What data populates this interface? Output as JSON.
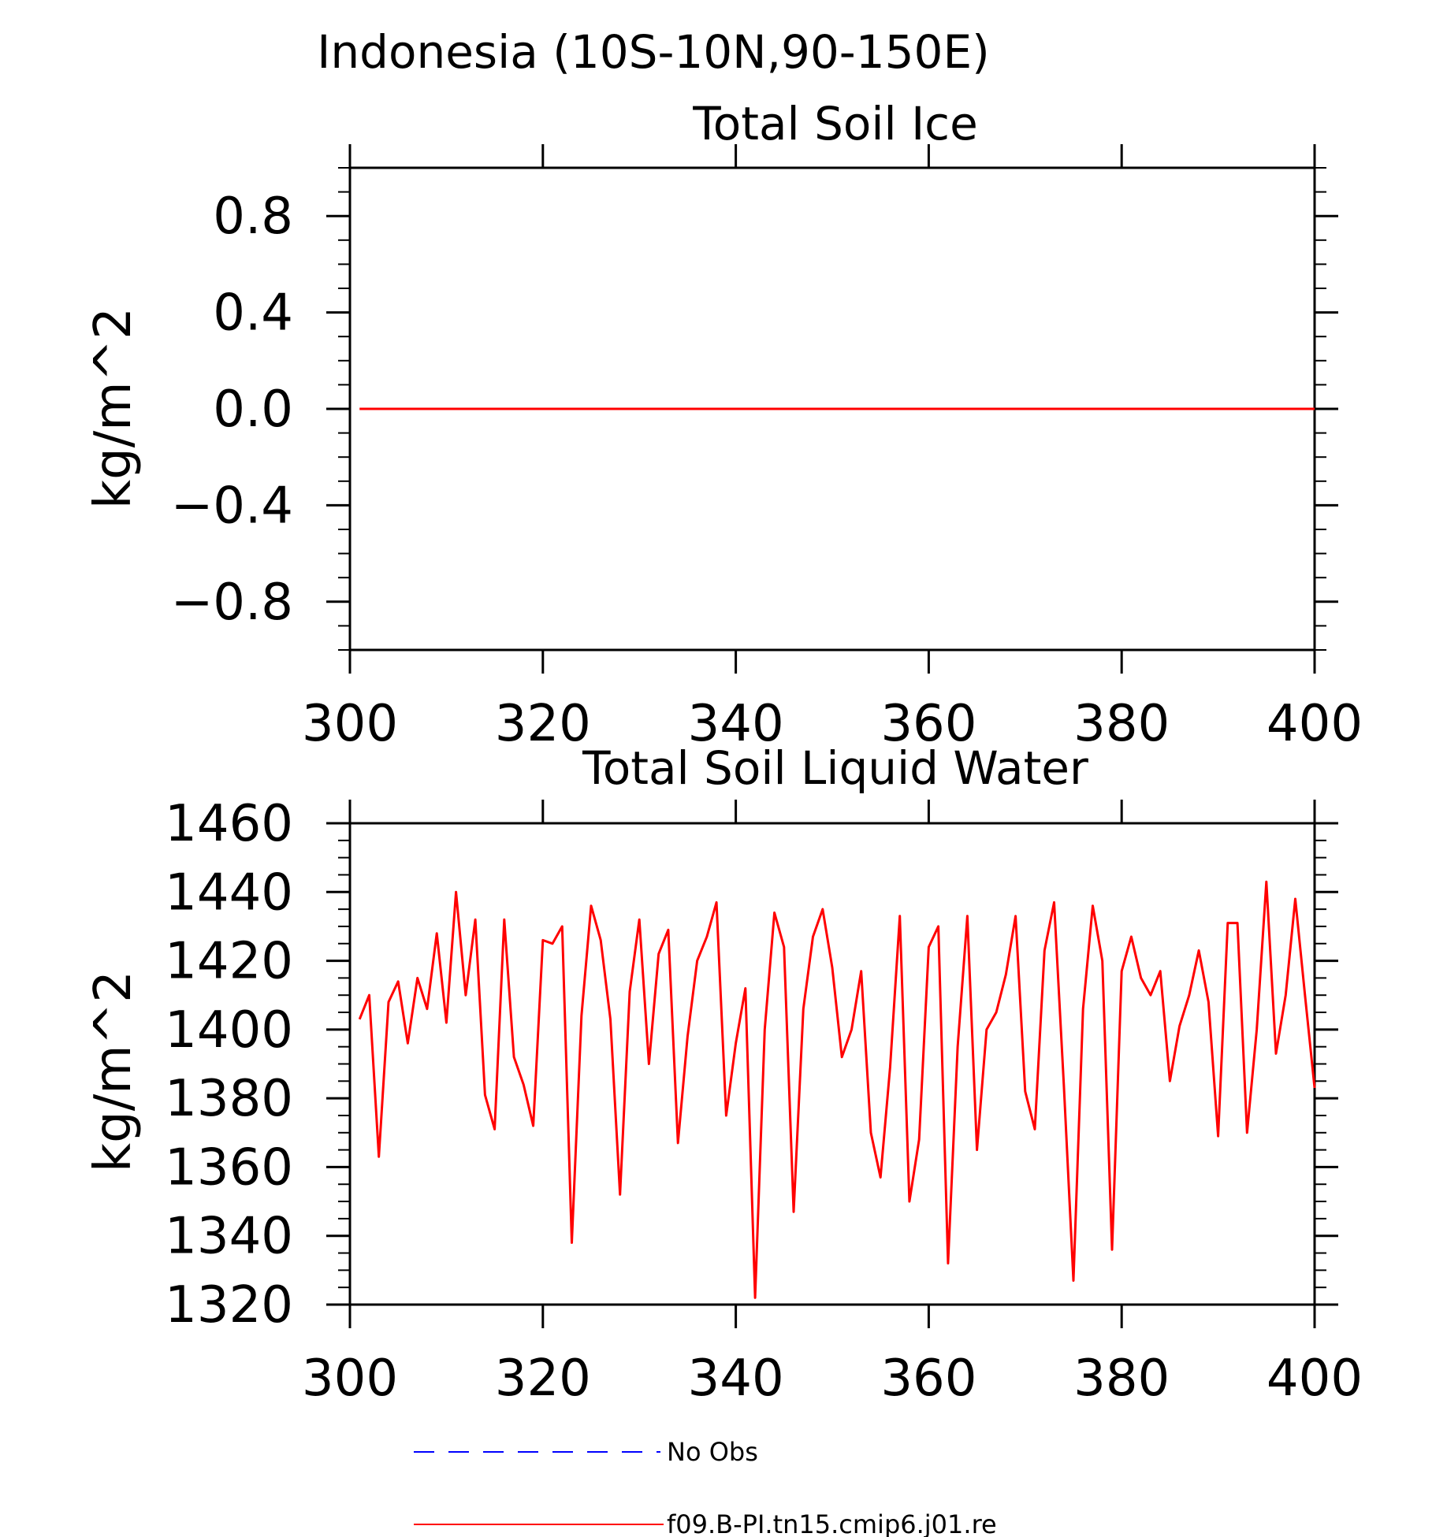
{
  "figure_title": "Indonesia (10S-10N,90-150E)",
  "chart_data": [
    {
      "type": "line",
      "title": "Total Soil Ice",
      "xlabel": "",
      "ylabel": "kg/m^2",
      "xlim": [
        300,
        400
      ],
      "ylim": [
        -1,
        1
      ],
      "x_ticks": [
        "300",
        "320",
        "340",
        "360",
        "380",
        "400"
      ],
      "y_ticks": [
        "0.8",
        "0.4",
        "0.0",
        "−0.4",
        "−0.8"
      ],
      "y_tick_values": [
        0.8,
        0.4,
        0.0,
        -0.4,
        -0.8
      ],
      "series": [
        {
          "name": "f09.B-PI.tn15.cmip6.j01.re",
          "color": "#ff0000",
          "x": [
            301,
            400
          ],
          "y": [
            0,
            0
          ]
        }
      ]
    },
    {
      "type": "line",
      "title": "Total Soil Liquid Water",
      "xlabel": "",
      "ylabel": "kg/m^2",
      "xlim": [
        300,
        400
      ],
      "ylim": [
        1320,
        1460
      ],
      "x_ticks": [
        "300",
        "320",
        "340",
        "360",
        "380",
        "400"
      ],
      "y_ticks": [
        "1460",
        "1440",
        "1420",
        "1400",
        "1380",
        "1360",
        "1340",
        "1320"
      ],
      "y_tick_values": [
        1460,
        1440,
        1420,
        1400,
        1380,
        1360,
        1340,
        1320
      ],
      "series": [
        {
          "name": "f09.B-PI.tn15.cmip6.j01.re",
          "color": "#ff0000",
          "x": [
            301,
            302,
            303,
            304,
            305,
            306,
            307,
            308,
            309,
            310,
            311,
            312,
            313,
            314,
            315,
            316,
            317,
            318,
            319,
            320,
            321,
            322,
            323,
            324,
            325,
            326,
            327,
            328,
            329,
            330,
            331,
            332,
            333,
            334,
            335,
            336,
            337,
            338,
            339,
            340,
            341,
            342,
            343,
            344,
            345,
            346,
            347,
            348,
            349,
            350,
            351,
            352,
            353,
            354,
            355,
            356,
            357,
            358,
            359,
            360,
            361,
            362,
            363,
            364,
            365,
            366,
            367,
            368,
            369,
            370,
            371,
            372,
            373,
            374,
            375,
            376,
            377,
            378,
            379,
            380,
            381,
            382,
            383,
            384,
            385,
            386,
            387,
            388,
            389,
            390,
            391,
            392,
            393,
            394,
            395,
            396,
            397,
            398,
            399,
            400
          ],
          "y": [
            1403,
            1410,
            1363,
            1408,
            1414,
            1396,
            1415,
            1406,
            1428,
            1402,
            1440,
            1410,
            1432,
            1381,
            1371,
            1432,
            1392,
            1384,
            1372,
            1426,
            1425,
            1430,
            1338,
            1404,
            1436,
            1426,
            1403,
            1352,
            1411,
            1432,
            1390,
            1422,
            1429,
            1367,
            1398,
            1420,
            1427,
            1437,
            1375,
            1396,
            1412,
            1322,
            1400,
            1434,
            1424,
            1347,
            1406,
            1427,
            1435,
            1418,
            1392,
            1400,
            1417,
            1370,
            1357,
            1389,
            1433,
            1350,
            1368,
            1424,
            1430,
            1332,
            1395,
            1433,
            1365,
            1400,
            1405,
            1416,
            1433,
            1382,
            1371,
            1423,
            1437,
            1384,
            1327,
            1406,
            1436,
            1420,
            1336,
            1417,
            1427,
            1415,
            1410,
            1417,
            1385,
            1401,
            1410,
            1423,
            1408,
            1369,
            1431,
            1431,
            1370,
            1400,
            1443,
            1393,
            1410,
            1438,
            1410,
            1383
          ]
        }
      ]
    }
  ],
  "legend": [
    {
      "label": "No Obs",
      "color": "#0000ff",
      "style": "dashed"
    },
    {
      "label": "f09.B-PI.tn15.cmip6.j01.re",
      "color": "#ff0000",
      "style": "solid"
    }
  ]
}
